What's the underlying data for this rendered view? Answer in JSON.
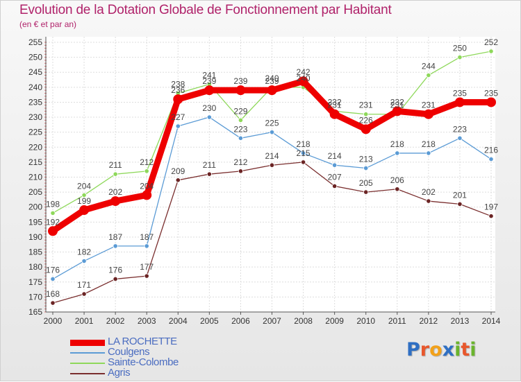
{
  "title": "Evolution de la Dotation Globale de Fonctionnement par Habitant",
  "subtitle": "(en € et par an)",
  "logo": {
    "letters": [
      "P",
      "r",
      "o",
      "x",
      "i",
      "t",
      "i"
    ],
    "colors": [
      "#2f6fc3",
      "#e8572c",
      "#f2a11a",
      "#2f6fc3",
      "#6ab42d",
      "#e8572c",
      "#6ab42d"
    ]
  },
  "chart_data": {
    "type": "line",
    "title": "Evolution de la Dotation Globale de Fonctionnement par Habitant",
    "subtitle": "(en € et par an)",
    "x": [
      "2000",
      "2001",
      "2002",
      "2003",
      "2004",
      "2005",
      "2006",
      "2007",
      "2008",
      "2009",
      "2010",
      "2011",
      "2012",
      "2013",
      "2014"
    ],
    "ylim": [
      165,
      255
    ],
    "yticks": [
      165,
      170,
      175,
      180,
      185,
      190,
      195,
      200,
      205,
      210,
      215,
      220,
      225,
      230,
      235,
      240,
      245,
      250,
      255
    ],
    "grid": true,
    "legend_position": "bottom-left",
    "series": [
      {
        "name": "LA ROCHETTE",
        "color": "#ee0000",
        "values": [
          192,
          199,
          202,
          204,
          236,
          239,
          239,
          239,
          242,
          231,
          226,
          232,
          231,
          235,
          235
        ]
      },
      {
        "name": "Coulgens",
        "color": "#5b9bd5",
        "values": [
          176,
          182,
          187,
          187,
          227,
          230,
          223,
          225,
          218,
          214,
          213,
          218,
          218,
          223,
          216
        ]
      },
      {
        "name": "Sainte-Colombe",
        "color": "#8ed85a",
        "values": [
          198,
          204,
          211,
          212,
          238,
          241,
          229,
          240,
          240,
          232,
          231,
          231,
          244,
          250,
          252
        ]
      },
      {
        "name": "Agris",
        "color": "#7a2e2e",
        "values": [
          168,
          171,
          176,
          177,
          209,
          211,
          212,
          214,
          215,
          207,
          205,
          206,
          202,
          201,
          197
        ]
      }
    ]
  }
}
